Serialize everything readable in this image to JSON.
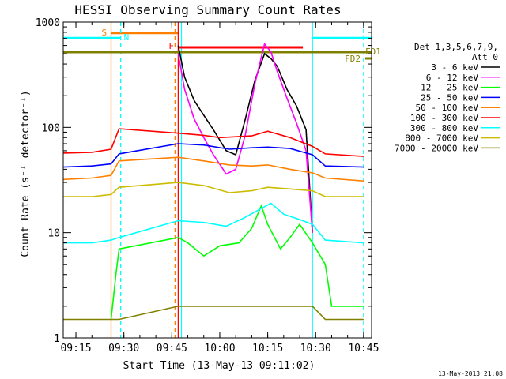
{
  "chart_data": {
    "type": "line",
    "title": "HESSI Observing Summary Count Rates",
    "xlabel": "Start Time (13-May-13 09:11:02)",
    "ylabel": "Count Rate (s⁻¹ detector⁻¹)",
    "y_scale": "log",
    "ylim": [
      1,
      1000
    ],
    "xlim": [
      "09:11:02",
      "10:47:30"
    ],
    "x_ticks": [
      "09:15",
      "09:30",
      "09:45",
      "10:00",
      "10:15",
      "10:30",
      "10:45"
    ],
    "y_ticks": [
      "1",
      "10",
      "100",
      "1000"
    ],
    "legend": {
      "title_line1": "Det 1,3,5,6,7,9,",
      "title_line2": "Att 0",
      "position": "right"
    },
    "series": [
      {
        "name": "3 - 6 keV",
        "color": "#000000",
        "points": [
          [
            "09:47:00",
            600
          ],
          [
            "09:49:00",
            300
          ],
          [
            "09:52:00",
            180
          ],
          [
            "09:55:00",
            130
          ],
          [
            "09:58:00",
            95
          ],
          [
            "10:02:00",
            60
          ],
          [
            "10:05:00",
            55
          ],
          [
            "10:08:00",
            120
          ],
          [
            "10:11:00",
            280
          ],
          [
            "10:14:00",
            500
          ],
          [
            "10:16:00",
            450
          ],
          [
            "10:18:00",
            380
          ],
          [
            "10:21:00",
            230
          ],
          [
            "10:24:00",
            160
          ],
          [
            "10:27:00",
            95
          ],
          [
            "10:29:00",
            10
          ]
        ]
      },
      {
        "name": "6 - 12 keV",
        "color": "#ff00ff",
        "points": [
          [
            "09:47:00",
            500
          ],
          [
            "09:49:00",
            230
          ],
          [
            "09:52:00",
            120
          ],
          [
            "09:55:00",
            80
          ],
          [
            "09:58:00",
            55
          ],
          [
            "10:02:00",
            36
          ],
          [
            "10:05:00",
            40
          ],
          [
            "10:08:00",
            85
          ],
          [
            "10:11:00",
            260
          ],
          [
            "10:14:00",
            620
          ],
          [
            "10:16:00",
            520
          ],
          [
            "10:18:00",
            340
          ],
          [
            "10:21:00",
            190
          ],
          [
            "10:24:00",
            110
          ],
          [
            "10:27:00",
            60
          ],
          [
            "10:29:00",
            10
          ]
        ]
      },
      {
        "name": "12 - 25 keV",
        "color": "#00ff00",
        "points": [
          [
            "09:26:00",
            1.5
          ],
          [
            "09:27:30",
            4
          ],
          [
            "09:28:30",
            7
          ],
          [
            "09:47:00",
            9
          ],
          [
            "09:50:00",
            8
          ],
          [
            "09:55:00",
            6
          ],
          [
            "10:00:00",
            7.5
          ],
          [
            "10:06:00",
            8
          ],
          [
            "10:10:00",
            11
          ],
          [
            "10:13:00",
            18
          ],
          [
            "10:15:00",
            12
          ],
          [
            "10:19:00",
            7
          ],
          [
            "10:22:00",
            9
          ],
          [
            "10:25:00",
            12
          ],
          [
            "10:29:00",
            8
          ],
          [
            "10:33:00",
            5
          ],
          [
            "10:35:00",
            2
          ],
          [
            "10:45:00",
            2
          ]
        ]
      },
      {
        "name": "25 - 50 keV",
        "color": "#0000ff",
        "points": [
          [
            "09:11:02",
            42
          ],
          [
            "09:20:00",
            43
          ],
          [
            "09:26:00",
            45
          ],
          [
            "09:28:30",
            56
          ],
          [
            "09:47:00",
            70
          ],
          [
            "09:55:00",
            68
          ],
          [
            "10:03:00",
            62
          ],
          [
            "10:10:00",
            64
          ],
          [
            "10:15:00",
            65
          ],
          [
            "10:22:00",
            63
          ],
          [
            "10:29:00",
            55
          ],
          [
            "10:33:00",
            43
          ],
          [
            "10:45:00",
            42
          ]
        ]
      },
      {
        "name": "50 - 100 keV",
        "color": "#ff8000",
        "points": [
          [
            "09:11:02",
            32
          ],
          [
            "09:20:00",
            33
          ],
          [
            "09:26:00",
            35
          ],
          [
            "09:28:30",
            48
          ],
          [
            "09:47:00",
            52
          ],
          [
            "09:55:00",
            48
          ],
          [
            "10:03:00",
            44
          ],
          [
            "10:10:00",
            43
          ],
          [
            "10:15:00",
            44
          ],
          [
            "10:22:00",
            40
          ],
          [
            "10:29:00",
            37
          ],
          [
            "10:33:00",
            33
          ],
          [
            "10:45:00",
            31
          ]
        ]
      },
      {
        "name": "100 - 300 keV",
        "color": "#ff0000",
        "points": [
          [
            "09:11:02",
            57
          ],
          [
            "09:20:00",
            58
          ],
          [
            "09:26:00",
            62
          ],
          [
            "09:28:30",
            97
          ],
          [
            "09:47:00",
            88
          ],
          [
            "09:55:00",
            84
          ],
          [
            "10:00:00",
            80
          ],
          [
            "10:10:00",
            83
          ],
          [
            "10:15:00",
            92
          ],
          [
            "10:22:00",
            80
          ],
          [
            "10:29:00",
            66
          ],
          [
            "10:33:00",
            56
          ],
          [
            "10:45:00",
            53
          ]
        ]
      },
      {
        "name": "300 - 800 keV",
        "color": "#00ffff",
        "points": [
          [
            "09:11:02",
            8
          ],
          [
            "09:20:00",
            8
          ],
          [
            "09:26:00",
            8.5
          ],
          [
            "09:28:30",
            9
          ],
          [
            "09:47:00",
            13
          ],
          [
            "09:55:00",
            12.5
          ],
          [
            "10:02:00",
            11.5
          ],
          [
            "10:08:00",
            14
          ],
          [
            "10:13:00",
            17
          ],
          [
            "10:16:00",
            19
          ],
          [
            "10:20:00",
            15
          ],
          [
            "10:26:00",
            13
          ],
          [
            "10:29:00",
            12
          ],
          [
            "10:33:00",
            8.5
          ],
          [
            "10:45:00",
            8
          ]
        ]
      },
      {
        "name": "800 - 7000 keV",
        "color": "#ccbb00",
        "points": [
          [
            "09:11:02",
            22
          ],
          [
            "09:20:00",
            22
          ],
          [
            "09:26:00",
            23
          ],
          [
            "09:28:30",
            27
          ],
          [
            "09:47:00",
            30
          ],
          [
            "09:55:00",
            28
          ],
          [
            "10:03:00",
            24
          ],
          [
            "10:10:00",
            25
          ],
          [
            "10:15:00",
            27
          ],
          [
            "10:22:00",
            26
          ],
          [
            "10:29:00",
            25
          ],
          [
            "10:33:00",
            22
          ],
          [
            "10:45:00",
            22
          ]
        ]
      },
      {
        "name": "7000 - 20000 keV",
        "color": "#808000",
        "points": [
          [
            "09:11:02",
            1.5
          ],
          [
            "09:28:30",
            1.5
          ],
          [
            "09:47:00",
            2
          ],
          [
            "10:29:00",
            2
          ],
          [
            "10:33:00",
            1.5
          ],
          [
            "10:45:00",
            1.5
          ]
        ]
      }
    ],
    "annotations": [
      {
        "label": "S",
        "color": "#ff8000",
        "time": "09:26:00"
      },
      {
        "label": "N",
        "color": "#00ffff",
        "time": "09:29:00"
      },
      {
        "label": "F",
        "color": "#ff0000",
        "time": "09:47:00"
      },
      {
        "label": "FD1",
        "color": "#808000",
        "time": "10:45:00"
      },
      {
        "label": "FD2",
        "color": "#808000",
        "time": "10:42:00"
      }
    ],
    "footer": "13-May-2013 21:08"
  }
}
